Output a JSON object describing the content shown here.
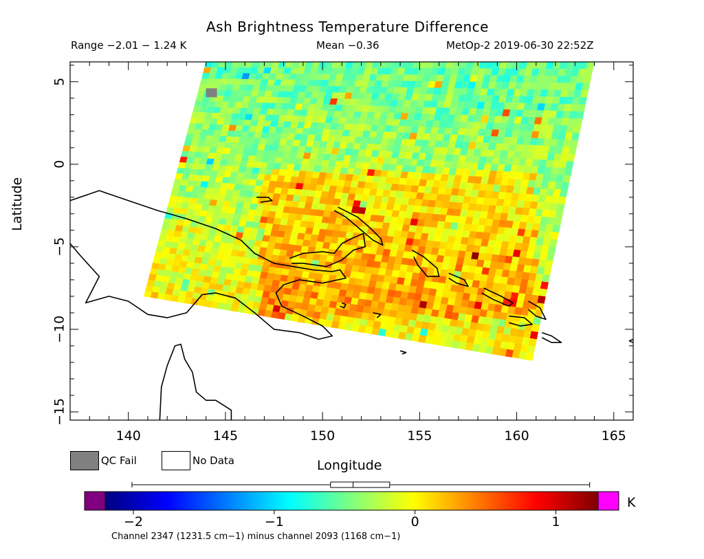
{
  "chart_data": {
    "type": "heatmap",
    "title": "Ash Brightness Temperature Difference",
    "header": {
      "range_text": "Range −2.01 − 1.24 K",
      "mean_text": "Mean −0.36",
      "platform_text": "MetOp-2 2019-06-30 22:52Z"
    },
    "xlabel": "Longitude",
    "ylabel": "Latitude",
    "xlim": [
      137,
      166
    ],
    "ylim": [
      -15.5,
      6.2
    ],
    "xticks": [
      140,
      145,
      150,
      155,
      160,
      165
    ],
    "xtick_labels": [
      "140",
      "145",
      "150",
      "155",
      "160",
      "165"
    ],
    "yticks": [
      5,
      0,
      -5,
      -10,
      -15
    ],
    "ytick_labels": [
      "5",
      "0",
      "−5",
      "−10",
      "−15"
    ],
    "value_range": [
      -2.01,
      1.24
    ],
    "mean": -0.36,
    "colorbar": {
      "min": -2.2,
      "max": 1.3,
      "ticks": [
        -2,
        -1,
        0,
        1
      ],
      "tick_labels": [
        "−2",
        "−1",
        "0",
        "1"
      ],
      "unit": "K",
      "under_color": "#800080",
      "over_color": "#ff00ff",
      "colormap": [
        "#00007f",
        "#0000ff",
        "#007fff",
        "#00ffff",
        "#7fff7f",
        "#ffff00",
        "#ff7f00",
        "#ff0000",
        "#7f0000"
      ],
      "boxplot": {
        "whisker": [
          -2.01,
          1.24
        ],
        "box": [
          -0.6,
          -0.18
        ],
        "median": -0.44
      },
      "caption": "Channel 2347 (1231.5 cm−1) minus channel 2093 (1168 cm−1)"
    },
    "swath_corners_lonlat": [
      [
        144.0,
        6.2
      ],
      [
        164.0,
        6.2
      ],
      [
        160.8,
        -11.9
      ],
      [
        140.8,
        -8.0
      ]
    ],
    "legend": [
      {
        "label": "QC Fail",
        "color": "#808080"
      },
      {
        "label": "No Data",
        "color": "#ffffff"
      }
    ],
    "coastlines": [
      {
        "name": "New Guinea north",
        "points": [
          [
            137,
            -2.2
          ],
          [
            138.5,
            -1.6
          ],
          [
            140,
            -2.2
          ],
          [
            141.5,
            -2.8
          ],
          [
            143,
            -3.3
          ],
          [
            144.5,
            -3.9
          ],
          [
            145.8,
            -4.6
          ],
          [
            146.5,
            -5.4
          ],
          [
            147.5,
            -6.0
          ],
          [
            148.5,
            -6.2
          ],
          [
            149.5,
            -6.4
          ],
          [
            150.5,
            -6.5
          ],
          [
            150.9,
            -6.4
          ],
          [
            151.2,
            -6.9
          ],
          [
            150.0,
            -7.2
          ],
          [
            148.8,
            -7.0
          ],
          [
            148.0,
            -7.3
          ],
          [
            147.6,
            -7.8
          ],
          [
            147.9,
            -8.6
          ],
          [
            149.0,
            -9.2
          ],
          [
            150.0,
            -9.8
          ],
          [
            150.5,
            -10.4
          ],
          [
            149.8,
            -10.6
          ],
          [
            148.8,
            -10.2
          ],
          [
            147.5,
            -10.0
          ],
          [
            146.5,
            -9.0
          ],
          [
            145.5,
            -8.1
          ],
          [
            144.5,
            -7.8
          ],
          [
            143.8,
            -7.9
          ],
          [
            143.0,
            -9.0
          ],
          [
            142.0,
            -9.3
          ],
          [
            141.0,
            -9.1
          ],
          [
            140.0,
            -8.3
          ],
          [
            139.0,
            -8.0
          ],
          [
            137.8,
            -8.4
          ],
          [
            138.5,
            -6.8
          ],
          [
            137.5,
            -5.5
          ],
          [
            137,
            -4.8
          ]
        ]
      },
      {
        "name": "New Britain",
        "points": [
          [
            148.3,
            -5.7
          ],
          [
            149.0,
            -5.4
          ],
          [
            150.0,
            -5.3
          ],
          [
            150.6,
            -5.4
          ],
          [
            151.0,
            -4.8
          ],
          [
            151.5,
            -4.5
          ],
          [
            152.1,
            -4.2
          ],
          [
            152.2,
            -5.0
          ],
          [
            151.6,
            -5.2
          ],
          [
            151.0,
            -5.8
          ],
          [
            150.2,
            -6.2
          ],
          [
            149.0,
            -6.0
          ],
          [
            148.4,
            -6.0
          ]
        ]
      },
      {
        "name": "New Ireland",
        "points": [
          [
            150.8,
            -2.6
          ],
          [
            151.8,
            -3.2
          ],
          [
            152.4,
            -3.8
          ],
          [
            153.0,
            -4.5
          ],
          [
            153.1,
            -4.9
          ],
          [
            152.6,
            -4.6
          ],
          [
            152.0,
            -4.0
          ],
          [
            151.2,
            -3.2
          ],
          [
            150.6,
            -2.8
          ]
        ]
      },
      {
        "name": "Manus",
        "points": [
          [
            146.6,
            -2.0
          ],
          [
            147.2,
            -2.0
          ],
          [
            147.4,
            -2.2
          ],
          [
            146.8,
            -2.3
          ]
        ]
      },
      {
        "name": "Bougainville",
        "points": [
          [
            154.6,
            -5.2
          ],
          [
            155.2,
            -5.6
          ],
          [
            155.9,
            -6.3
          ],
          [
            156.0,
            -6.8
          ],
          [
            155.4,
            -6.8
          ],
          [
            154.9,
            -6.1
          ],
          [
            154.7,
            -5.6
          ]
        ]
      },
      {
        "name": "Choiseul",
        "points": [
          [
            156.5,
            -6.6
          ],
          [
            157.3,
            -7.0
          ],
          [
            157.5,
            -7.4
          ],
          [
            156.9,
            -7.2
          ],
          [
            156.5,
            -6.9
          ]
        ]
      },
      {
        "name": "Santa Isabel",
        "points": [
          [
            158.3,
            -7.5
          ],
          [
            159.2,
            -8.0
          ],
          [
            159.8,
            -8.4
          ],
          [
            159.6,
            -8.6
          ],
          [
            158.8,
            -8.2
          ],
          [
            158.2,
            -7.8
          ]
        ]
      },
      {
        "name": "Guadalcanal",
        "points": [
          [
            159.6,
            -9.2
          ],
          [
            160.4,
            -9.3
          ],
          [
            160.8,
            -9.7
          ],
          [
            160.2,
            -9.8
          ],
          [
            159.6,
            -9.6
          ]
        ]
      },
      {
        "name": "Malaita",
        "points": [
          [
            160.6,
            -8.3
          ],
          [
            161.2,
            -8.7
          ],
          [
            161.5,
            -9.4
          ],
          [
            161.0,
            -9.2
          ],
          [
            160.6,
            -8.8
          ]
        ]
      },
      {
        "name": "Makira",
        "points": [
          [
            161.3,
            -10.2
          ],
          [
            161.8,
            -10.4
          ],
          [
            162.3,
            -10.8
          ],
          [
            161.8,
            -10.8
          ],
          [
            161.3,
            -10.5
          ]
        ]
      },
      {
        "name": "Trobriand",
        "points": [
          [
            151.0,
            -8.4
          ],
          [
            151.2,
            -8.5
          ],
          [
            151.1,
            -8.7
          ],
          [
            150.9,
            -8.6
          ]
        ]
      },
      {
        "name": "Woodlark",
        "points": [
          [
            152.6,
            -9.0
          ],
          [
            153.0,
            -9.1
          ],
          [
            152.8,
            -9.3
          ]
        ]
      },
      {
        "name": "Rossel",
        "points": [
          [
            154.0,
            -11.3
          ],
          [
            154.3,
            -11.4
          ],
          [
            154.1,
            -11.5
          ]
        ]
      },
      {
        "name": "Cape York",
        "points": [
          [
            141.6,
            -15.9
          ],
          [
            141.7,
            -13.5
          ],
          [
            142.0,
            -12.2
          ],
          [
            142.4,
            -11.0
          ],
          [
            142.7,
            -10.9
          ],
          [
            142.9,
            -11.8
          ],
          [
            143.3,
            -12.6
          ],
          [
            143.5,
            -13.8
          ],
          [
            144.0,
            -14.3
          ],
          [
            144.5,
            -14.3
          ],
          [
            145.3,
            -14.9
          ],
          [
            145.3,
            -15.9
          ]
        ]
      },
      {
        "name": "Santa Cruz",
        "points": [
          [
            166,
            -10.6
          ],
          [
            165.8,
            -10.7
          ],
          [
            166,
            -10.8
          ]
        ]
      }
    ]
  }
}
